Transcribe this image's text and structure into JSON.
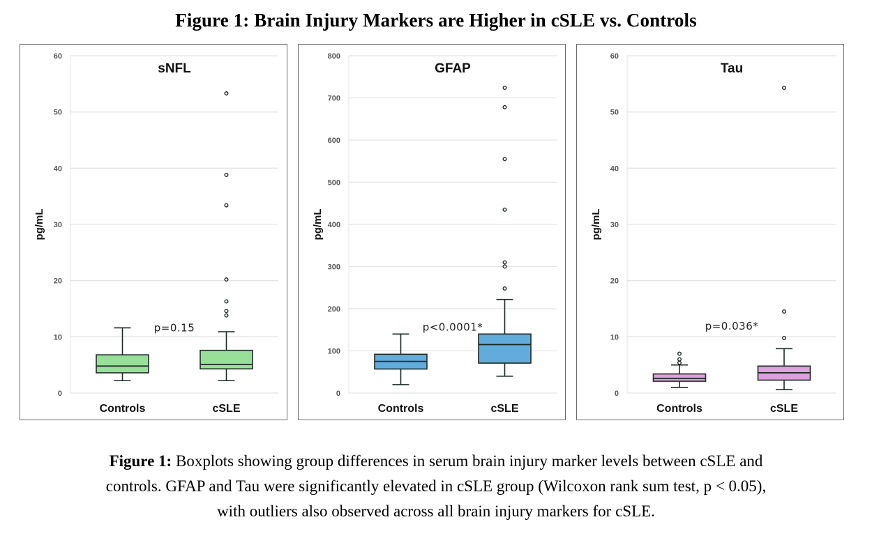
{
  "figure_title": "Figure 1: Brain Injury Markers are Higher in cSLE vs. Controls",
  "caption": {
    "label": "Figure 1:",
    "line1": " Boxplots showing group differences in serum brain injury marker levels between cSLE and",
    "line2": "controls. GFAP and Tau were significantly elevated in cSLE group (Wilcoxon rank sum test, p < 0.05),",
    "line3": "with outliers also observed across all brain injury markers for cSLE."
  },
  "chart_data": [
    {
      "type": "box",
      "title": "sNFL",
      "ylabel": "pg/mL",
      "xlabel": "",
      "categories": [
        "Controls",
        "cSLE"
      ],
      "ylim": [
        0,
        60
      ],
      "yticks": [
        0,
        10,
        20,
        30,
        40,
        50,
        60
      ],
      "grid": true,
      "annotation": "p=0.15",
      "color": "#98e09a",
      "series": [
        {
          "name": "Controls",
          "whisker_low": 2.2,
          "q1": 3.6,
          "median": 4.8,
          "q3": 6.8,
          "whisker_high": 11.6,
          "outliers": []
        },
        {
          "name": "cSLE",
          "whisker_low": 2.2,
          "q1": 4.3,
          "median": 5.1,
          "q3": 7.6,
          "whisker_high": 10.9,
          "outliers": [
            13.8,
            14.6,
            16.3,
            20.2,
            33.4,
            38.8,
            53.3
          ]
        }
      ]
    },
    {
      "type": "box",
      "title": "GFAP",
      "ylabel": "pg/mL",
      "xlabel": "",
      "categories": [
        "Controls",
        "cSLE"
      ],
      "ylim": [
        0,
        800
      ],
      "yticks": [
        0,
        100,
        200,
        300,
        400,
        500,
        600,
        700,
        800
      ],
      "grid": true,
      "annotation": "p<0.0001*",
      "color": "#62acdc",
      "series": [
        {
          "name": "Controls",
          "whisker_low": 20,
          "q1": 57,
          "median": 75,
          "q3": 92,
          "whisker_high": 140,
          "outliers": []
        },
        {
          "name": "cSLE",
          "whisker_low": 40,
          "q1": 71,
          "median": 115,
          "q3": 140,
          "whisker_high": 222,
          "outliers": [
            248,
            300,
            310,
            435,
            555,
            678,
            724
          ]
        }
      ]
    },
    {
      "type": "box",
      "title": "Tau",
      "ylabel": "pg/mL",
      "xlabel": "",
      "categories": [
        "Controls",
        "cSLE"
      ],
      "ylim": [
        0,
        60
      ],
      "yticks": [
        0,
        10,
        20,
        30,
        40,
        50,
        60
      ],
      "grid": true,
      "annotation": "p=0.036*",
      "color": "#dca0dc",
      "series": [
        {
          "name": "Controls",
          "whisker_low": 1.0,
          "q1": 2.1,
          "median": 2.6,
          "q3": 3.4,
          "whisker_high": 5.0,
          "outliers": [
            5.4,
            6.0,
            7.0
          ]
        },
        {
          "name": "cSLE",
          "whisker_low": 0.6,
          "q1": 2.3,
          "median": 3.6,
          "q3": 4.8,
          "whisker_high": 7.9,
          "outliers": [
            9.8,
            14.5,
            54.3
          ]
        }
      ]
    }
  ]
}
